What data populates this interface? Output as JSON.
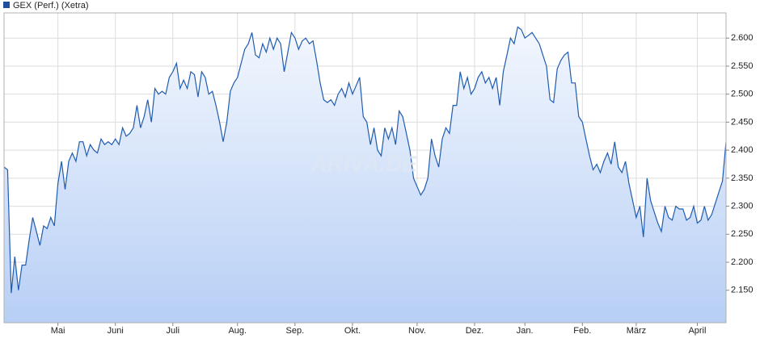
{
  "chart_data": {
    "type": "line",
    "legend": "GEX (Perf.) (Xetra)",
    "watermark": "ARIVA.DE",
    "series": [
      {
        "name": "GEX (Perf.) (Xetra)",
        "color": "#1f5cb0",
        "values": [
          2370,
          2365,
          2145,
          2210,
          2150,
          2195,
          2195,
          2240,
          2280,
          2255,
          2230,
          2265,
          2260,
          2280,
          2265,
          2340,
          2380,
          2330,
          2380,
          2395,
          2380,
          2415,
          2415,
          2390,
          2410,
          2400,
          2395,
          2420,
          2410,
          2415,
          2410,
          2420,
          2410,
          2440,
          2425,
          2430,
          2440,
          2480,
          2440,
          2460,
          2490,
          2450,
          2510,
          2500,
          2505,
          2500,
          2530,
          2540,
          2555,
          2510,
          2525,
          2510,
          2540,
          2535,
          2495,
          2540,
          2530,
          2500,
          2505,
          2480,
          2450,
          2415,
          2450,
          2505,
          2520,
          2530,
          2555,
          2580,
          2590,
          2610,
          2570,
          2565,
          2590,
          2575,
          2600,
          2580,
          2600,
          2590,
          2540,
          2575,
          2610,
          2600,
          2580,
          2595,
          2600,
          2590,
          2595,
          2560,
          2520,
          2490,
          2485,
          2490,
          2480,
          2500,
          2510,
          2495,
          2520,
          2500,
          2515,
          2530,
          2460,
          2450,
          2410,
          2440,
          2400,
          2390,
          2440,
          2420,
          2440,
          2410,
          2470,
          2460,
          2430,
          2400,
          2350,
          2335,
          2320,
          2330,
          2350,
          2420,
          2390,
          2370,
          2420,
          2440,
          2430,
          2480,
          2480,
          2540,
          2510,
          2530,
          2500,
          2510,
          2530,
          2540,
          2520,
          2530,
          2510,
          2530,
          2480,
          2540,
          2570,
          2600,
          2590,
          2620,
          2615,
          2600,
          2605,
          2610,
          2600,
          2590,
          2570,
          2550,
          2490,
          2485,
          2545,
          2560,
          2570,
          2575,
          2520,
          2520,
          2460,
          2450,
          2420,
          2390,
          2365,
          2375,
          2360,
          2380,
          2395,
          2375,
          2415,
          2370,
          2360,
          2380,
          2340,
          2310,
          2280,
          2300,
          2245,
          2350,
          2310,
          2290,
          2270,
          2255,
          2300,
          2280,
          2275,
          2300,
          2295,
          2295,
          2275,
          2280,
          2300,
          2270,
          2275,
          2300,
          2275,
          2285,
          2305,
          2325,
          2345,
          2415
        ]
      }
    ],
    "xlim": [
      0,
      201
    ],
    "xticks": [
      {
        "value": 15,
        "label": "Mai"
      },
      {
        "value": 31,
        "label": "Juni"
      },
      {
        "value": 47,
        "label": "Juli"
      },
      {
        "value": 65,
        "label": "Aug."
      },
      {
        "value": 81,
        "label": "Sep."
      },
      {
        "value": 97,
        "label": "Okt."
      },
      {
        "value": 115,
        "label": "Nov."
      },
      {
        "value": 131,
        "label": "Dez."
      },
      {
        "value": 145,
        "label": "Jan."
      },
      {
        "value": 161,
        "label": "Feb."
      },
      {
        "value": 176,
        "label": "März"
      },
      {
        "value": 193,
        "label": "April"
      }
    ],
    "ylim": [
      2092,
      2645
    ],
    "yticks": [
      {
        "value": 2150,
        "label": "2.150"
      },
      {
        "value": 2200,
        "label": "2.200"
      },
      {
        "value": 2250,
        "label": "2.250"
      },
      {
        "value": 2300,
        "label": "2.300"
      },
      {
        "value": 2350,
        "label": "2.350"
      },
      {
        "value": 2400,
        "label": "2.400"
      },
      {
        "value": 2450,
        "label": "2.450"
      },
      {
        "value": 2500,
        "label": "2.500"
      },
      {
        "value": 2550,
        "label": "2.550"
      },
      {
        "value": 2600,
        "label": "2.600"
      }
    ],
    "grid": true
  }
}
